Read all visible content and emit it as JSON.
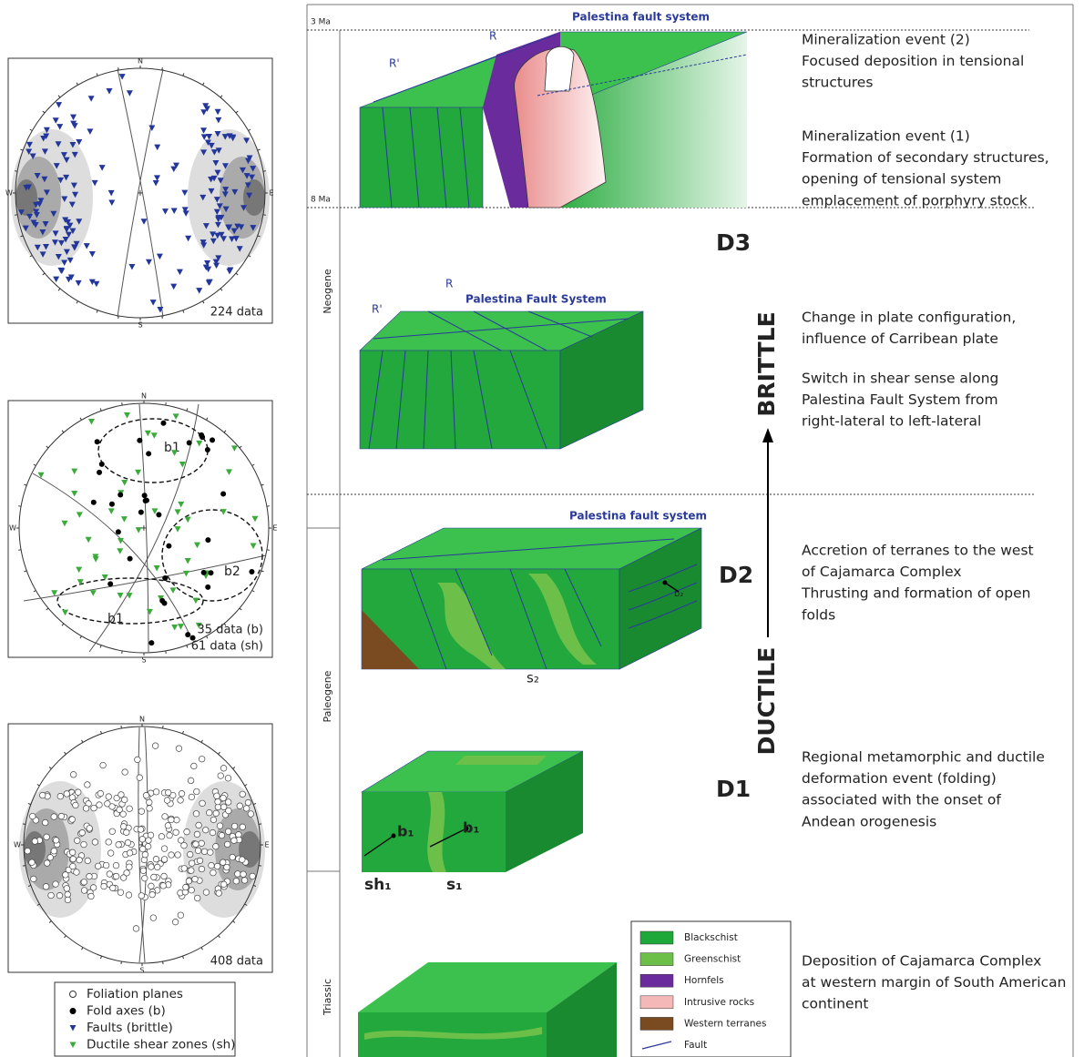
{
  "stereonets": [
    {
      "north": "N",
      "south": "S",
      "west": "W",
      "east": "E",
      "counts": [
        "224 data"
      ]
    },
    {
      "north": "N",
      "south": "S",
      "west": "W",
      "east": "E",
      "domains": [
        "b1",
        "b2",
        "b1"
      ],
      "counts": [
        "35 data (b)",
        "61 data (sh)"
      ]
    },
    {
      "north": "N",
      "south": "S",
      "west": "W",
      "east": "E",
      "counts": [
        "408 data"
      ]
    }
  ],
  "stereonet_legend": [
    "Foliation planes",
    "Fold axes (b)",
    "Faults (brittle)",
    "Ductile shear zones (sh)"
  ],
  "timeline": {
    "ages": [
      "3 Ma",
      "8 Ma"
    ],
    "periods": [
      "Neogene",
      "Paleogene",
      "Triassic"
    ]
  },
  "blocks": {
    "d3": {
      "fault_system": "Palestina fault system",
      "shears": [
        "R",
        "R'"
      ]
    },
    "brittle": {
      "fault_system": "Palestina Fault System",
      "shears": [
        "R",
        "R'"
      ]
    },
    "d2": {
      "fault_system": "Palestina fault system",
      "axis": "b₂",
      "foliation": "s₂"
    },
    "d1": {
      "axes": [
        "b₁",
        "b₁"
      ],
      "shear": "sh₁",
      "foliation": "s₁"
    }
  },
  "phases": [
    "D3",
    "D2",
    "D1"
  ],
  "regimes": [
    "BRITTLE",
    "DUCTILE"
  ],
  "descriptions": [
    [
      "Mineralization event (2)",
      "Focused deposition in tensional",
      "structures"
    ],
    [
      "Mineralization event (1)",
      "Formation of secondary structures,",
      "opening of tensional system",
      "emplacement of porphyry stock"
    ],
    [
      "Change in plate configuration,",
      "influence of Carribean plate"
    ],
    [
      "Switch in shear sense along",
      "Palestina Fault System from",
      "right-lateral to left-lateral"
    ],
    [
      "Accretion of terranes to the west",
      "of Cajamarca Complex",
      "Thrusting and formation of open",
      "folds"
    ],
    [
      "Regional metamorphic and ductile",
      "deformation event (folding)",
      "associated with the onset of",
      "Andean orogenesis"
    ],
    [
      "Deposition of Cajamarca Complex",
      "at western margin of South American",
      "continent"
    ]
  ],
  "rock_legend": [
    "Blackschist",
    "Greenschist",
    "Hornfels",
    "Intrusive rocks",
    "Western terranes",
    "Fault"
  ]
}
